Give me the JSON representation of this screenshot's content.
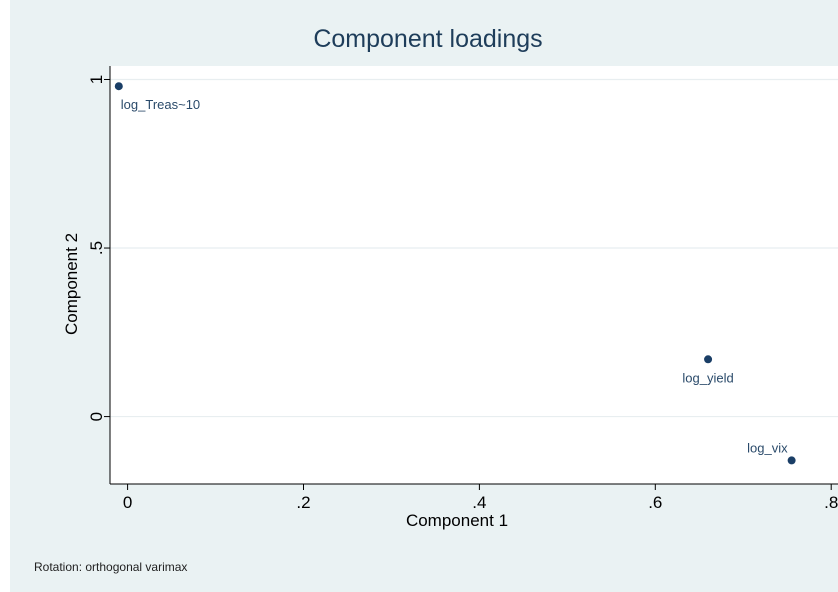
{
  "chart_data": {
    "type": "scatter",
    "title": "Component loadings",
    "xlabel": "Component 1",
    "ylabel": "Component 2",
    "xlim": [
      -0.02,
      0.81
    ],
    "ylim": [
      -0.2,
      1.04
    ],
    "xticks": [
      {
        "value": 0,
        "label": "0"
      },
      {
        "value": 0.2,
        "label": ".2"
      },
      {
        "value": 0.4,
        "label": ".4"
      },
      {
        "value": 0.6,
        "label": ".6"
      },
      {
        "value": 0.8,
        "label": ".8"
      }
    ],
    "yticks": [
      {
        "value": 0,
        "label": "0"
      },
      {
        "value": 0.5,
        "label": ".5"
      },
      {
        "value": 1,
        "label": "1"
      }
    ],
    "grid": true,
    "points": [
      {
        "label": "log_Treas~10",
        "x": -0.01,
        "y": 0.98,
        "label_pos": "below-right"
      },
      {
        "label": "log_yield",
        "x": 0.66,
        "y": 0.17,
        "label_pos": "below"
      },
      {
        "label": "log_vix",
        "x": 0.755,
        "y": -0.13,
        "label_pos": "above-left"
      }
    ],
    "note": "Rotation: orthogonal varimax",
    "colors": {
      "background": "#eaf2f3",
      "plot": "#ffffff",
      "marker": "#1a3e66",
      "title": "#1e3d5a"
    }
  }
}
